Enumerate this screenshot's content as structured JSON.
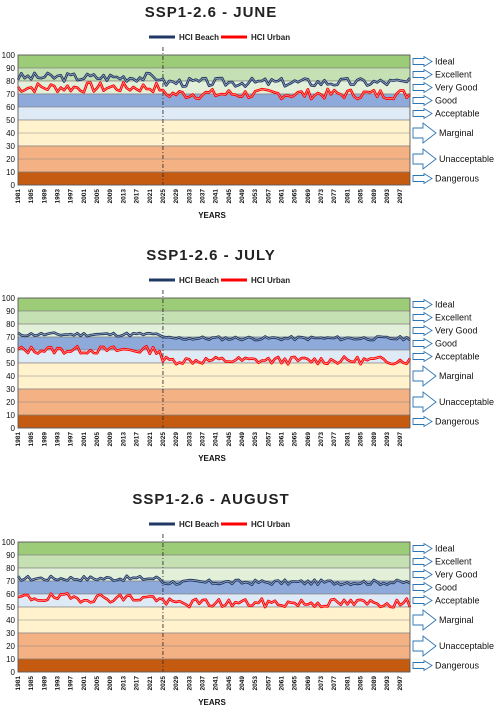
{
  "charts": [
    {
      "title": "SSP1-2.6 - JUNE",
      "xlabel": "YEARS",
      "legend": [
        "HCI Beach",
        "HCI Urban"
      ],
      "categories": [
        "Ideal",
        "Excellent",
        "Very Good",
        "Good",
        "Acceptable",
        "Marginal",
        "Unacceptable",
        "Dangerous"
      ]
    },
    {
      "title": "SSP1-2.6 - JULY",
      "xlabel": "YEARS",
      "legend": [
        "HCI Beach",
        "HCI Urban"
      ],
      "categories": [
        "Ideal",
        "Excellent",
        "Very Good",
        "Good",
        "Acceptable",
        "Marginal",
        "Unacceptable",
        "Dangerous"
      ]
    },
    {
      "title": "SSP1-2.6 - AUGUST",
      "xlabel": "YEARS",
      "legend": [
        "HCI Beach",
        "HCI Urban"
      ],
      "categories": [
        "Ideal",
        "Excellent",
        "Very Good",
        "Good",
        "Acceptable",
        "Marginal",
        "Unacceptable",
        "Dangerous"
      ]
    }
  ],
  "chart_data": [
    {
      "type": "line",
      "title": "SSP1-2.6 - JUNE",
      "xlabel": "YEARS",
      "ylabel": "",
      "ylim": [
        0,
        100
      ],
      "yticks": [
        0,
        10,
        20,
        30,
        40,
        50,
        60,
        70,
        80,
        90,
        100
      ],
      "xticks": [
        1981,
        1985,
        1989,
        1993,
        1997,
        2001,
        2005,
        2009,
        2013,
        2017,
        2021,
        2025,
        2029,
        2033,
        2037,
        2041,
        2045,
        2049,
        2053,
        2057,
        2061,
        2065,
        2069,
        2073,
        2077,
        2081,
        2085,
        2089,
        2093,
        2097
      ],
      "xlim": [
        1981,
        2100
      ],
      "vline": 2025,
      "bands": [
        {
          "from": 90,
          "to": 100,
          "label": "Ideal",
          "color": "#9ccc78"
        },
        {
          "from": 80,
          "to": 90,
          "label": "Excellent",
          "color": "#c5e0b3"
        },
        {
          "from": 70,
          "to": 80,
          "label": "Very Good",
          "color": "#e2efd9"
        },
        {
          "from": 60,
          "to": 70,
          "label": "Good",
          "color": "#8eaadb"
        },
        {
          "from": 50,
          "to": 60,
          "label": "Acceptable",
          "color": "#deeaf6"
        },
        {
          "from": 30,
          "to": 50,
          "label": "Marginal",
          "color": "#fff2cc"
        },
        {
          "from": 10,
          "to": 30,
          "label": "Unacceptable",
          "color": "#f4b183"
        },
        {
          "from": 0,
          "to": 10,
          "label": "Dangerous",
          "color": "#c55a11"
        }
      ],
      "series": [
        {
          "name": "HCI Beach",
          "color": "#1f3864",
          "base": 83,
          "late_base": 79,
          "amp": 3.5,
          "seed": 3
        },
        {
          "name": "HCI Urban",
          "color": "#ff0000",
          "base": 75,
          "late_base": 70,
          "amp": 4,
          "seed": 7
        }
      ]
    },
    {
      "type": "line",
      "title": "SSP1-2.6 - JULY",
      "xlabel": "YEARS",
      "ylabel": "",
      "ylim": [
        0,
        100
      ],
      "yticks": [
        0,
        10,
        20,
        30,
        40,
        50,
        60,
        70,
        80,
        90,
        100
      ],
      "xticks": [
        1981,
        1985,
        1989,
        1993,
        1997,
        2001,
        2005,
        2009,
        2013,
        2017,
        2021,
        2025,
        2029,
        2033,
        2037,
        2041,
        2045,
        2049,
        2053,
        2057,
        2061,
        2065,
        2069,
        2073,
        2077,
        2081,
        2085,
        2089,
        2093,
        2097
      ],
      "xlim": [
        1981,
        2100
      ],
      "vline": 2025,
      "bands": [
        {
          "from": 90,
          "to": 100,
          "label": "Ideal",
          "color": "#9ccc78"
        },
        {
          "from": 80,
          "to": 90,
          "label": "Excellent",
          "color": "#c5e0b3"
        },
        {
          "from": 70,
          "to": 80,
          "label": "Very Good",
          "color": "#e2efd9"
        },
        {
          "from": 60,
          "to": 70,
          "label": "Good",
          "color": "#8eaadb"
        },
        {
          "from": 50,
          "to": 60,
          "label": "Acceptable",
          "color": "#deeaf6"
        },
        {
          "from": 30,
          "to": 50,
          "label": "Marginal",
          "color": "#fff2cc"
        },
        {
          "from": 10,
          "to": 30,
          "label": "Unacceptable",
          "color": "#f4b183"
        },
        {
          "from": 0,
          "to": 10,
          "label": "Dangerous",
          "color": "#c55a11"
        }
      ],
      "series": [
        {
          "name": "HCI Beach",
          "color": "#1f3864",
          "base": 72,
          "late_base": 69,
          "amp": 1.5,
          "seed": 11
        },
        {
          "name": "HCI Urban",
          "color": "#ff0000",
          "base": 60,
          "late_base": 52,
          "amp": 3,
          "seed": 13
        }
      ]
    },
    {
      "type": "line",
      "title": "SSP1-2.6 - AUGUST",
      "xlabel": "YEARS",
      "ylabel": "",
      "ylim": [
        0,
        100
      ],
      "yticks": [
        0,
        10,
        20,
        30,
        40,
        50,
        60,
        70,
        80,
        90,
        100
      ],
      "xticks": [
        1981,
        1985,
        1989,
        1993,
        1997,
        2001,
        2005,
        2009,
        2013,
        2017,
        2021,
        2025,
        2029,
        2033,
        2037,
        2041,
        2045,
        2049,
        2053,
        2057,
        2061,
        2065,
        2069,
        2073,
        2077,
        2081,
        2085,
        2089,
        2093,
        2097
      ],
      "xlim": [
        1981,
        2100
      ],
      "vline": 2025,
      "bands": [
        {
          "from": 90,
          "to": 100,
          "label": "Ideal",
          "color": "#9ccc78"
        },
        {
          "from": 80,
          "to": 90,
          "label": "Excellent",
          "color": "#c5e0b3"
        },
        {
          "from": 70,
          "to": 80,
          "label": "Very Good",
          "color": "#e2efd9"
        },
        {
          "from": 60,
          "to": 70,
          "label": "Good",
          "color": "#8eaadb"
        },
        {
          "from": 50,
          "to": 60,
          "label": "Acceptable",
          "color": "#deeaf6"
        },
        {
          "from": 30,
          "to": 50,
          "label": "Marginal",
          "color": "#fff2cc"
        },
        {
          "from": 10,
          "to": 30,
          "label": "Unacceptable",
          "color": "#f4b183"
        },
        {
          "from": 0,
          "to": 10,
          "label": "Dangerous",
          "color": "#c55a11"
        }
      ],
      "series": [
        {
          "name": "HCI Beach",
          "color": "#1f3864",
          "base": 72,
          "late_base": 69,
          "amp": 2,
          "seed": 17
        },
        {
          "name": "HCI Urban",
          "color": "#ff0000",
          "base": 57,
          "late_base": 53,
          "amp": 3.5,
          "seed": 19
        }
      ]
    }
  ]
}
